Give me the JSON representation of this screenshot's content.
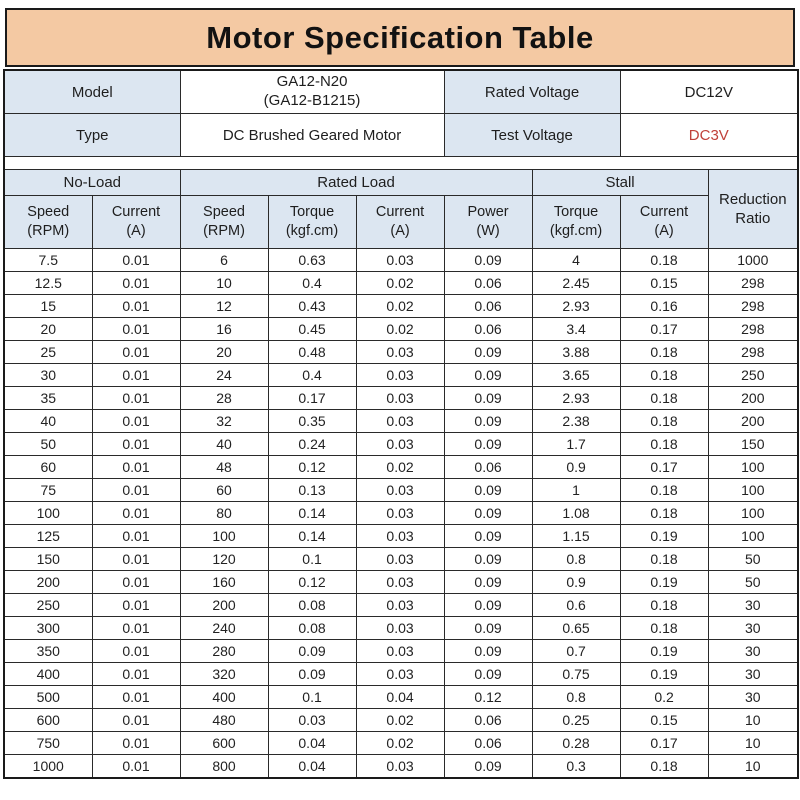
{
  "title": "Motor Specification Table",
  "info": {
    "model_label": "Model",
    "model_value_line1": "GA12-N20",
    "model_value_line2": "(GA12-B1215)",
    "rated_voltage_label": "Rated Voltage",
    "rated_voltage_value": "DC12V",
    "type_label": "Type",
    "type_value": "DC Brushed Geared Motor",
    "test_voltage_label": "Test Voltage",
    "test_voltage_value": "DC3V"
  },
  "table": {
    "groups": [
      {
        "label": "No-Load",
        "span": 2
      },
      {
        "label": "Rated Load",
        "span": 4
      },
      {
        "label": "Stall",
        "span": 2
      }
    ],
    "reduction_header": [
      "Reduction",
      "Ratio"
    ],
    "columns": [
      {
        "l1": "Speed",
        "l2": "(RPM)"
      },
      {
        "l1": "Current",
        "l2": "(A)"
      },
      {
        "l1": "Speed",
        "l2": "(RPM)"
      },
      {
        "l1": "Torque",
        "l2": "(kgf.cm)"
      },
      {
        "l1": "Current",
        "l2": "(A)"
      },
      {
        "l1": "Power",
        "l2": "(W)"
      },
      {
        "l1": "Torque",
        "l2": "(kgf.cm)"
      },
      {
        "l1": "Current",
        "l2": "(A)"
      }
    ],
    "rows": [
      [
        "7.5",
        "0.01",
        "6",
        "0.63",
        "0.03",
        "0.09",
        "4",
        "0.18",
        "1000"
      ],
      [
        "12.5",
        "0.01",
        "10",
        "0.4",
        "0.02",
        "0.06",
        "2.45",
        "0.15",
        "298"
      ],
      [
        "15",
        "0.01",
        "12",
        "0.43",
        "0.02",
        "0.06",
        "2.93",
        "0.16",
        "298"
      ],
      [
        "20",
        "0.01",
        "16",
        "0.45",
        "0.02",
        "0.06",
        "3.4",
        "0.17",
        "298"
      ],
      [
        "25",
        "0.01",
        "20",
        "0.48",
        "0.03",
        "0.09",
        "3.88",
        "0.18",
        "298"
      ],
      [
        "30",
        "0.01",
        "24",
        "0.4",
        "0.03",
        "0.09",
        "3.65",
        "0.18",
        "250"
      ],
      [
        "35",
        "0.01",
        "28",
        "0.17",
        "0.03",
        "0.09",
        "2.93",
        "0.18",
        "200"
      ],
      [
        "40",
        "0.01",
        "32",
        "0.35",
        "0.03",
        "0.09",
        "2.38",
        "0.18",
        "200"
      ],
      [
        "50",
        "0.01",
        "40",
        "0.24",
        "0.03",
        "0.09",
        "1.7",
        "0.18",
        "150"
      ],
      [
        "60",
        "0.01",
        "48",
        "0.12",
        "0.02",
        "0.06",
        "0.9",
        "0.17",
        "100"
      ],
      [
        "75",
        "0.01",
        "60",
        "0.13",
        "0.03",
        "0.09",
        "1",
        "0.18",
        "100"
      ],
      [
        "100",
        "0.01",
        "80",
        "0.14",
        "0.03",
        "0.09",
        "1.08",
        "0.18",
        "100"
      ],
      [
        "125",
        "0.01",
        "100",
        "0.14",
        "0.03",
        "0.09",
        "1.15",
        "0.19",
        "100"
      ],
      [
        "150",
        "0.01",
        "120",
        "0.1",
        "0.03",
        "0.09",
        "0.8",
        "0.18",
        "50"
      ],
      [
        "200",
        "0.01",
        "160",
        "0.12",
        "0.03",
        "0.09",
        "0.9",
        "0.19",
        "50"
      ],
      [
        "250",
        "0.01",
        "200",
        "0.08",
        "0.03",
        "0.09",
        "0.6",
        "0.18",
        "30"
      ],
      [
        "300",
        "0.01",
        "240",
        "0.08",
        "0.03",
        "0.09",
        "0.65",
        "0.18",
        "30"
      ],
      [
        "350",
        "0.01",
        "280",
        "0.09",
        "0.03",
        "0.09",
        "0.7",
        "0.19",
        "30"
      ],
      [
        "400",
        "0.01",
        "320",
        "0.09",
        "0.03",
        "0.09",
        "0.75",
        "0.19",
        "30"
      ],
      [
        "500",
        "0.01",
        "400",
        "0.1",
        "0.04",
        "0.12",
        "0.8",
        "0.2",
        "30"
      ],
      [
        "600",
        "0.01",
        "480",
        "0.03",
        "0.02",
        "0.06",
        "0.25",
        "0.15",
        "10"
      ],
      [
        "750",
        "0.01",
        "600",
        "0.04",
        "0.02",
        "0.06",
        "0.28",
        "0.17",
        "10"
      ],
      [
        "1000",
        "0.01",
        "800",
        "0.04",
        "0.03",
        "0.09",
        "0.3",
        "0.18",
        "10"
      ]
    ]
  },
  "colors": {
    "title_bg": "#f4c9a3",
    "header_bg": "#dce6f1",
    "test_voltage_color": "#c0413a",
    "border": "#2a2a2a"
  }
}
